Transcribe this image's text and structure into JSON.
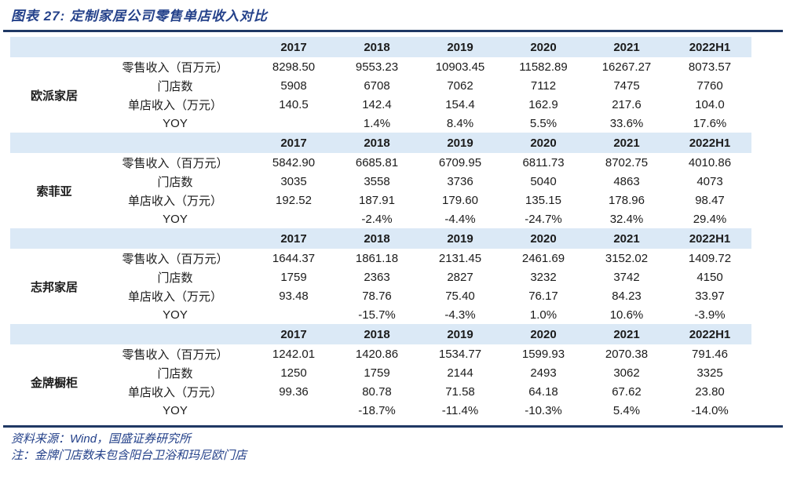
{
  "title": "图表 27:  定制家居公司零售单店收入对比",
  "colors": {
    "rule_navy": "#1f3864",
    "band_blue": "#dbe9f6",
    "title_blue": "#24418a"
  },
  "table": {
    "year_headers": [
      "2017",
      "2018",
      "2019",
      "2020",
      "2021",
      "2022H1"
    ],
    "row_labels": [
      "零售收入（百万元）",
      "门店数",
      "单店收入（万元）",
      "YOY"
    ],
    "sections": [
      {
        "company": "欧派家居",
        "rows": [
          [
            "8298.50",
            "9553.23",
            "10903.45",
            "11582.89",
            "16267.27",
            "8073.57"
          ],
          [
            "5908",
            "6708",
            "7062",
            "7112",
            "7475",
            "7760"
          ],
          [
            "140.5",
            "142.4",
            "154.4",
            "162.9",
            "217.6",
            "104.0"
          ],
          [
            "",
            "1.4%",
            "8.4%",
            "5.5%",
            "33.6%",
            "17.6%"
          ]
        ]
      },
      {
        "company": "索菲亚",
        "rows": [
          [
            "5842.90",
            "6685.81",
            "6709.95",
            "6811.73",
            "8702.75",
            "4010.86"
          ],
          [
            "3035",
            "3558",
            "3736",
            "5040",
            "4863",
            "4073"
          ],
          [
            "192.52",
            "187.91",
            "179.60",
            "135.15",
            "178.96",
            "98.47"
          ],
          [
            "",
            "-2.4%",
            "-4.4%",
            "-24.7%",
            "32.4%",
            "29.4%"
          ]
        ]
      },
      {
        "company": "志邦家居",
        "rows": [
          [
            "1644.37",
            "1861.18",
            "2131.45",
            "2461.69",
            "3152.02",
            "1409.72"
          ],
          [
            "1759",
            "2363",
            "2827",
            "3232",
            "3742",
            "4150"
          ],
          [
            "93.48",
            "78.76",
            "75.40",
            "76.17",
            "84.23",
            "33.97"
          ],
          [
            "",
            "-15.7%",
            "-4.3%",
            "1.0%",
            "10.6%",
            "-3.9%"
          ]
        ]
      },
      {
        "company": "金牌橱柜",
        "rows": [
          [
            "1242.01",
            "1420.86",
            "1534.77",
            "1599.93",
            "2070.38",
            "791.46"
          ],
          [
            "1250",
            "1759",
            "2144",
            "2493",
            "3062",
            "3325"
          ],
          [
            "99.36",
            "80.78",
            "71.58",
            "64.18",
            "67.62",
            "23.80"
          ],
          [
            "",
            "-18.7%",
            "-11.4%",
            "-10.3%",
            "5.4%",
            "-14.0%"
          ]
        ]
      }
    ]
  },
  "footer": {
    "source": "资料来源：Wind，国盛证券研究所",
    "note": "注：金牌门店数未包含阳台卫浴和玛尼欧门店"
  }
}
